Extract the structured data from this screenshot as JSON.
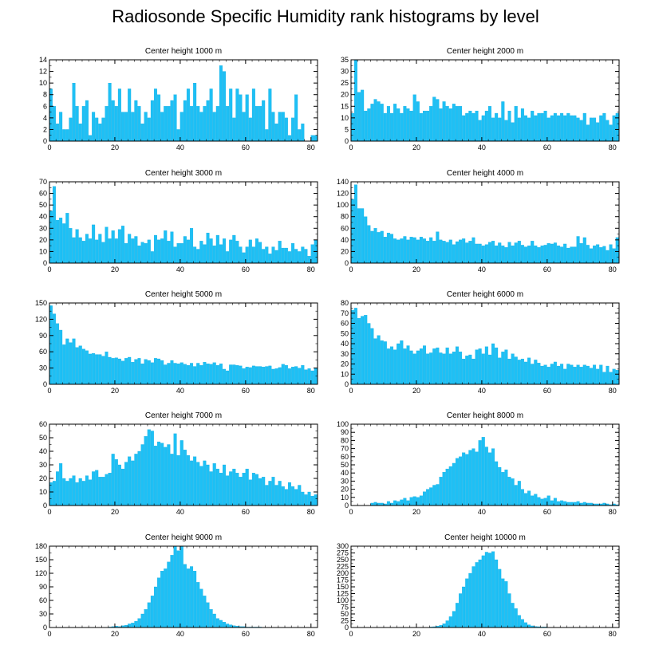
{
  "title": "Radiosonde Specific Humidity rank histograms by level",
  "bar_color": "#1ec0f5",
  "chart_data": [
    {
      "type": "bar",
      "title": "Center height 1000 m",
      "xlim": [
        0,
        82
      ],
      "ylim": [
        0,
        14
      ],
      "xticks": [
        0,
        20,
        40,
        60,
        80
      ],
      "yticks": [
        0,
        2,
        4,
        6,
        8,
        10,
        12,
        14
      ],
      "values": [
        9,
        6,
        3,
        5,
        2,
        2,
        4,
        10,
        6,
        3,
        6,
        7,
        1,
        5,
        4,
        3,
        4,
        6,
        10,
        7,
        6,
        9,
        5,
        5,
        9,
        5,
        7,
        6,
        3,
        5,
        4,
        7,
        9,
        8,
        5,
        6,
        6,
        7,
        8,
        2,
        5,
        7,
        9,
        6,
        10,
        6,
        5,
        6,
        7,
        9,
        5,
        6,
        13,
        12,
        6,
        9,
        4,
        9,
        8,
        5,
        8,
        4,
        9,
        6,
        6,
        7,
        2,
        9,
        5,
        3,
        5,
        5,
        4,
        1,
        4,
        8,
        2,
        3,
        0,
        0,
        1,
        1
      ]
    },
    {
      "type": "bar",
      "title": "Center height 2000 m",
      "xlim": [
        0,
        82
      ],
      "ylim": [
        0,
        35
      ],
      "xticks": [
        0,
        20,
        40,
        60,
        80
      ],
      "yticks": [
        0,
        5,
        10,
        15,
        20,
        25,
        30,
        35
      ],
      "values": [
        12,
        35,
        21,
        22,
        13,
        14,
        16,
        18,
        17,
        16,
        12,
        15,
        12,
        16,
        14,
        12,
        15,
        14,
        13,
        20,
        17,
        12,
        13,
        13,
        15,
        19,
        18,
        14,
        17,
        15,
        14,
        16,
        15,
        15,
        11,
        12,
        13,
        12,
        13,
        9,
        11,
        13,
        15,
        10,
        12,
        10,
        17,
        9,
        13,
        8,
        15,
        10,
        14,
        11,
        10,
        13,
        11,
        12,
        12,
        13,
        10,
        11,
        12,
        11,
        12,
        11,
        12,
        11,
        11,
        10,
        9,
        12,
        7,
        10,
        10,
        8,
        11,
        12,
        9,
        7,
        11,
        12
      ]
    },
    {
      "type": "bar",
      "title": "Center height 3000 m",
      "xlim": [
        0,
        82
      ],
      "ylim": [
        0,
        70
      ],
      "xticks": [
        0,
        20,
        40,
        60,
        80
      ],
      "yticks": [
        0,
        10,
        20,
        30,
        40,
        50,
        60,
        70
      ],
      "values": [
        45,
        66,
        37,
        39,
        34,
        43,
        30,
        22,
        29,
        22,
        19,
        25,
        21,
        33,
        20,
        25,
        18,
        31,
        21,
        28,
        21,
        29,
        32,
        17,
        25,
        21,
        23,
        15,
        18,
        17,
        20,
        10,
        24,
        20,
        21,
        28,
        19,
        27,
        14,
        17,
        17,
        23,
        20,
        30,
        14,
        12,
        19,
        16,
        26,
        21,
        15,
        24,
        16,
        21,
        10,
        20,
        24,
        19,
        14,
        9,
        14,
        20,
        14,
        21,
        18,
        12,
        14,
        8,
        14,
        11,
        19,
        13,
        13,
        10,
        17,
        12,
        10,
        14,
        12,
        6,
        16,
        20
      ]
    },
    {
      "type": "bar",
      "title": "Center height 4000 m",
      "xlim": [
        0,
        82
      ],
      "ylim": [
        0,
        140
      ],
      "xticks": [
        0,
        20,
        40,
        60,
        80
      ],
      "yticks": [
        0,
        20,
        40,
        60,
        80,
        100,
        120,
        140
      ],
      "values": [
        110,
        135,
        94,
        94,
        80,
        65,
        55,
        60,
        53,
        55,
        45,
        52,
        50,
        42,
        40,
        42,
        46,
        40,
        45,
        44,
        40,
        45,
        42,
        38,
        44,
        38,
        54,
        40,
        38,
        36,
        40,
        32,
        37,
        40,
        42,
        35,
        38,
        44,
        33,
        33,
        30,
        32,
        36,
        38,
        30,
        35,
        30,
        27,
        36,
        30,
        35,
        38,
        31,
        28,
        30,
        38,
        30,
        27,
        30,
        31,
        34,
        33,
        35,
        30,
        28,
        33,
        26,
        28,
        28,
        46,
        34,
        44,
        31,
        25,
        30,
        32,
        27,
        29,
        22,
        32,
        25,
        44
      ]
    },
    {
      "type": "bar",
      "title": "Center height 5000 m",
      "xlim": [
        0,
        82
      ],
      "ylim": [
        0,
        150
      ],
      "xticks": [
        0,
        20,
        40,
        60,
        80
      ],
      "yticks": [
        0,
        30,
        60,
        90,
        120,
        150
      ],
      "values": [
        145,
        130,
        112,
        100,
        73,
        84,
        77,
        84,
        68,
        71,
        65,
        62,
        56,
        57,
        55,
        55,
        52,
        60,
        50,
        48,
        49,
        47,
        43,
        48,
        50,
        41,
        46,
        48,
        38,
        46,
        44,
        40,
        48,
        47,
        44,
        36,
        39,
        44,
        39,
        38,
        40,
        37,
        35,
        39,
        33,
        39,
        35,
        41,
        38,
        37,
        40,
        35,
        38,
        28,
        25,
        36,
        36,
        35,
        34,
        29,
        32,
        31,
        34,
        33,
        33,
        32,
        33,
        34,
        28,
        29,
        31,
        37,
        35,
        29,
        32,
        33,
        30,
        35,
        27,
        29,
        25,
        30
      ]
    },
    {
      "type": "bar",
      "title": "Center height 6000 m",
      "xlim": [
        0,
        82
      ],
      "ylim": [
        0,
        80
      ],
      "xticks": [
        0,
        20,
        40,
        60,
        80
      ],
      "yticks": [
        0,
        10,
        20,
        30,
        40,
        50,
        60,
        70,
        80
      ],
      "values": [
        73,
        75,
        65,
        67,
        68,
        60,
        55,
        45,
        48,
        43,
        42,
        35,
        37,
        34,
        40,
        43,
        35,
        38,
        33,
        30,
        33,
        35,
        38,
        30,
        31,
        35,
        36,
        31,
        30,
        36,
        30,
        32,
        37,
        32,
        25,
        28,
        29,
        25,
        34,
        35,
        30,
        37,
        29,
        40,
        36,
        26,
        32,
        34,
        25,
        30,
        27,
        24,
        25,
        22,
        26,
        20,
        24,
        21,
        18,
        19,
        17,
        20,
        22,
        18,
        20,
        15,
        20,
        19,
        17,
        19,
        17,
        19,
        18,
        16,
        19,
        15,
        19,
        12,
        18,
        12,
        15,
        14
      ]
    },
    {
      "type": "bar",
      "title": "Center height 7000 m",
      "xlim": [
        0,
        82
      ],
      "ylim": [
        0,
        60
      ],
      "xticks": [
        0,
        20,
        40,
        60,
        80
      ],
      "yticks": [
        0,
        10,
        20,
        30,
        40,
        50,
        60
      ],
      "values": [
        17,
        18,
        25,
        31,
        20,
        18,
        20,
        22,
        17,
        20,
        18,
        22,
        19,
        25,
        26,
        21,
        21,
        23,
        24,
        38,
        34,
        30,
        27,
        32,
        36,
        33,
        38,
        40,
        45,
        51,
        56,
        55,
        44,
        47,
        46,
        43,
        45,
        38,
        53,
        37,
        48,
        41,
        37,
        33,
        36,
        32,
        29,
        33,
        30,
        25,
        31,
        27,
        24,
        30,
        22,
        25,
        27,
        24,
        21,
        24,
        27,
        19,
        24,
        23,
        20,
        21,
        15,
        18,
        21,
        15,
        18,
        14,
        12,
        17,
        14,
        12,
        15,
        10,
        8,
        10,
        7,
        8
      ]
    },
    {
      "type": "bar",
      "title": "Center height 8000 m",
      "xlim": [
        0,
        82
      ],
      "ylim": [
        0,
        100
      ],
      "xticks": [
        0,
        20,
        40,
        60,
        80
      ],
      "yticks": [
        0,
        10,
        20,
        30,
        40,
        50,
        60,
        70,
        80,
        90,
        100
      ],
      "values": [
        0,
        0,
        0,
        0,
        0,
        0,
        3,
        4,
        3,
        3,
        2,
        5,
        3,
        6,
        5,
        7,
        9,
        6,
        10,
        11,
        10,
        12,
        17,
        20,
        22,
        25,
        26,
        35,
        41,
        45,
        48,
        52,
        58,
        60,
        65,
        63,
        68,
        70,
        66,
        80,
        84,
        72,
        65,
        70,
        54,
        47,
        41,
        44,
        35,
        33,
        25,
        30,
        20,
        15,
        18,
        12,
        14,
        10,
        8,
        9,
        12,
        6,
        9,
        5,
        6,
        5,
        4,
        4,
        4,
        5,
        3,
        4,
        3,
        3,
        2,
        2,
        2,
        3,
        2,
        1,
        2,
        1
      ]
    },
    {
      "type": "bar",
      "title": "Center height 9000 m",
      "xlim": [
        0,
        82
      ],
      "ylim": [
        0,
        180
      ],
      "xticks": [
        0,
        20,
        40,
        60,
        80
      ],
      "yticks": [
        0,
        30,
        60,
        90,
        120,
        150,
        180
      ],
      "values": [
        0,
        0,
        0,
        0,
        0,
        0,
        0,
        0,
        0,
        0,
        0,
        0,
        0,
        0,
        0,
        0,
        0,
        0,
        1,
        2,
        3,
        2,
        4,
        5,
        8,
        10,
        14,
        20,
        30,
        40,
        55,
        70,
        90,
        110,
        125,
        130,
        145,
        160,
        180,
        170,
        180,
        140,
        130,
        135,
        125,
        100,
        85,
        70,
        55,
        40,
        30,
        20,
        16,
        12,
        8,
        6,
        4,
        3,
        2,
        2,
        1,
        1,
        1,
        1,
        1,
        0,
        0,
        0,
        0,
        0,
        0,
        0,
        0,
        0,
        0,
        0,
        0,
        0,
        0,
        0,
        0,
        0
      ]
    },
    {
      "type": "bar",
      "title": "Center height 10000 m",
      "xlim": [
        0,
        82
      ],
      "ylim": [
        0,
        300
      ],
      "xticks": [
        0,
        20,
        40,
        60,
        80
      ],
      "yticks": [
        0,
        25,
        50,
        75,
        100,
        125,
        150,
        175,
        200,
        225,
        250,
        275,
        300
      ],
      "values": [
        0,
        0,
        0,
        0,
        0,
        0,
        0,
        0,
        0,
        0,
        0,
        0,
        0,
        0,
        0,
        0,
        0,
        0,
        0,
        0,
        0,
        0,
        0,
        1,
        2,
        3,
        5,
        8,
        14,
        25,
        40,
        60,
        90,
        125,
        150,
        180,
        200,
        225,
        240,
        250,
        265,
        278,
        275,
        280,
        250,
        215,
        180,
        170,
        125,
        90,
        70,
        45,
        30,
        18,
        10,
        6,
        4,
        3,
        2,
        2,
        1,
        1,
        0,
        0,
        0,
        0,
        0,
        0,
        0,
        0,
        0,
        0,
        0,
        0,
        0,
        0,
        0,
        0,
        0,
        0,
        0,
        0
      ]
    }
  ]
}
